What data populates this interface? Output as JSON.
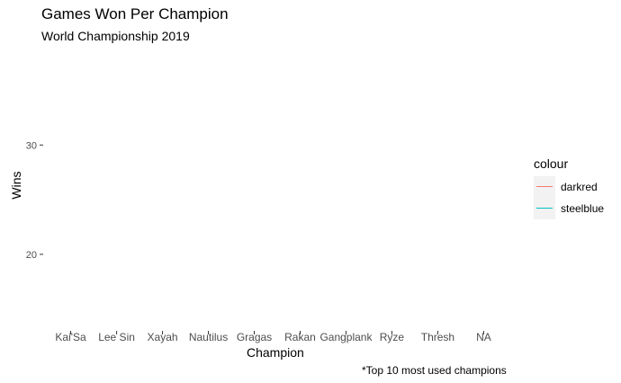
{
  "chart_data": {
    "type": "line",
    "title": "Games Won Per Champion",
    "subtitle": "World Championship 2019",
    "xlabel": "Champion",
    "ylabel": "Wins",
    "caption": "*Top 10 most used champions",
    "categories": [
      "Kai'Sa",
      "Lee Sin",
      "Xayah",
      "Nautilus",
      "Gragas",
      "Rakan",
      "Gangplank",
      "Ryze",
      "Thresh",
      "NA"
    ],
    "ylim": [
      13,
      38
    ],
    "yticks": [
      20,
      30
    ],
    "grid": false,
    "legend": {
      "title": "colour",
      "placement": "right",
      "entries": [
        {
          "label": "darkred",
          "color": "#F8766D"
        },
        {
          "label": "steelblue",
          "color": "#00BFC4"
        }
      ]
    },
    "series": []
  }
}
